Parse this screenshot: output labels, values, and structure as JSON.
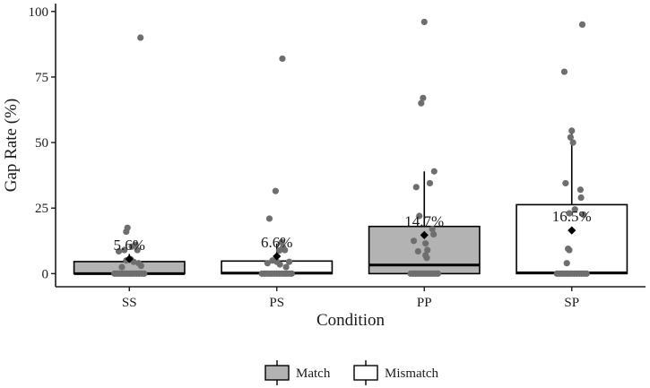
{
  "chart_data": {
    "type": "boxplot",
    "xlabel": "Condition",
    "ylabel": "Gap Rate (%)",
    "ylim": [
      -5,
      103
    ],
    "yticks": [
      0,
      25,
      50,
      75,
      100
    ],
    "categories": [
      "SS",
      "PS",
      "PP",
      "SP"
    ],
    "grid": false,
    "legend": {
      "position": "bottom",
      "entries": [
        {
          "name": "Match",
          "fill": "#b3b3b3"
        },
        {
          "name": "Mismatch",
          "fill": "#ffffff"
        }
      ]
    },
    "colors": {
      "point": "#6e6e6e",
      "mean": "#000000",
      "box_line": "#000000"
    },
    "groups": [
      {
        "category": "SS",
        "type": "Match",
        "q1": 0,
        "median": 0,
        "q3": 4.6,
        "whisker_low": 0,
        "whisker_high": 7.5,
        "mean": 5.6,
        "mean_label": "5.6%",
        "points": [
          [
            -0.24,
            0
          ],
          [
            -0.2,
            0
          ],
          [
            -0.16,
            0
          ],
          [
            -0.12,
            0
          ],
          [
            -0.08,
            0
          ],
          [
            -0.04,
            0
          ],
          [
            0,
            0
          ],
          [
            0.04,
            0
          ],
          [
            0.08,
            0
          ],
          [
            0.12,
            0
          ],
          [
            0.16,
            0
          ],
          [
            0.2,
            0
          ],
          [
            0.24,
            0
          ],
          [
            -0.17,
            8.5
          ],
          [
            -0.08,
            9
          ],
          [
            -0.05,
            16
          ],
          [
            -0.03,
            17.5
          ],
          [
            0.04,
            10.3
          ],
          [
            0.1,
            11
          ],
          [
            0.13,
            9
          ],
          [
            -0.05,
            5
          ],
          [
            0.02,
            5.5
          ],
          [
            0.07,
            4.5
          ],
          [
            0.15,
            4
          ],
          [
            -0.12,
            2.5
          ],
          [
            0.19,
            3
          ],
          [
            0.18,
            90
          ]
        ]
      },
      {
        "category": "PS",
        "type": "Mismatch",
        "q1": 0,
        "median": 0.2,
        "q3": 4.8,
        "whisker_low": 0,
        "whisker_high": 11.5,
        "mean": 6.6,
        "mean_label": "6.6%",
        "points": [
          [
            -0.24,
            0
          ],
          [
            -0.2,
            0
          ],
          [
            -0.16,
            0
          ],
          [
            -0.12,
            0
          ],
          [
            -0.08,
            0
          ],
          [
            -0.04,
            0
          ],
          [
            0,
            0
          ],
          [
            0.04,
            0
          ],
          [
            0.08,
            0
          ],
          [
            0.12,
            0
          ],
          [
            0.16,
            0
          ],
          [
            0.2,
            0
          ],
          [
            0.24,
            0
          ],
          [
            -0.12,
            21
          ],
          [
            -0.02,
            31.5
          ],
          [
            0.08,
            12
          ],
          [
            0.1,
            10
          ],
          [
            0.13,
            9
          ],
          [
            0.04,
            8.8
          ],
          [
            -0.07,
            5
          ],
          [
            0.0,
            4.5
          ],
          [
            0.05,
            3.5
          ],
          [
            -0.15,
            4
          ],
          [
            0.15,
            2.5
          ],
          [
            0.2,
            4.5
          ],
          [
            0.09,
            82
          ]
        ]
      },
      {
        "category": "PP",
        "type": "Match",
        "q1": 0,
        "median": 3.3,
        "q3": 18,
        "whisker_low": 0,
        "whisker_high": 39,
        "mean": 14.7,
        "mean_label": "14.7%",
        "points": [
          [
            -0.22,
            0
          ],
          [
            -0.18,
            0
          ],
          [
            -0.14,
            0
          ],
          [
            -0.1,
            0
          ],
          [
            -0.06,
            0
          ],
          [
            -0.02,
            0
          ],
          [
            0.02,
            0
          ],
          [
            0.06,
            0
          ],
          [
            0.1,
            0
          ],
          [
            0.14,
            0
          ],
          [
            0.18,
            0
          ],
          [
            0.22,
            0
          ],
          [
            0.0,
            96
          ],
          [
            -0.05,
            65
          ],
          [
            -0.02,
            67
          ],
          [
            -0.13,
            33
          ],
          [
            0.09,
            34.5
          ],
          [
            0.16,
            39
          ],
          [
            -0.08,
            22
          ],
          [
            0.13,
            17
          ],
          [
            0.15,
            15
          ],
          [
            -0.17,
            12.5
          ],
          [
            0.02,
            11.5
          ],
          [
            0.05,
            9
          ],
          [
            0.02,
            7
          ],
          [
            -0.1,
            8.5
          ],
          [
            0.04,
            6
          ]
        ]
      },
      {
        "category": "SP",
        "type": "Mismatch",
        "q1": 0,
        "median": 0.3,
        "q3": 26.3,
        "whisker_low": 0,
        "whisker_high": 55,
        "mean": 16.5,
        "mean_label": "16.5%",
        "points": [
          [
            -0.24,
            0
          ],
          [
            -0.2,
            0
          ],
          [
            -0.16,
            0
          ],
          [
            -0.12,
            0
          ],
          [
            -0.08,
            0
          ],
          [
            -0.04,
            0
          ],
          [
            0,
            0
          ],
          [
            0.04,
            0
          ],
          [
            0.08,
            0
          ],
          [
            0.12,
            0
          ],
          [
            0.16,
            0
          ],
          [
            0.2,
            0
          ],
          [
            0.24,
            0
          ],
          [
            -0.12,
            77
          ],
          [
            0.17,
            95
          ],
          [
            -0.02,
            52
          ],
          [
            0.0,
            54.5
          ],
          [
            0.02,
            50
          ],
          [
            -0.1,
            34.5
          ],
          [
            0.14,
            32
          ],
          [
            0.15,
            29
          ],
          [
            0.05,
            24.5
          ],
          [
            0.19,
            22.5
          ],
          [
            -0.04,
            23
          ],
          [
            -0.06,
            9.5
          ],
          [
            -0.04,
            9
          ],
          [
            -0.08,
            4
          ]
        ]
      }
    ]
  }
}
